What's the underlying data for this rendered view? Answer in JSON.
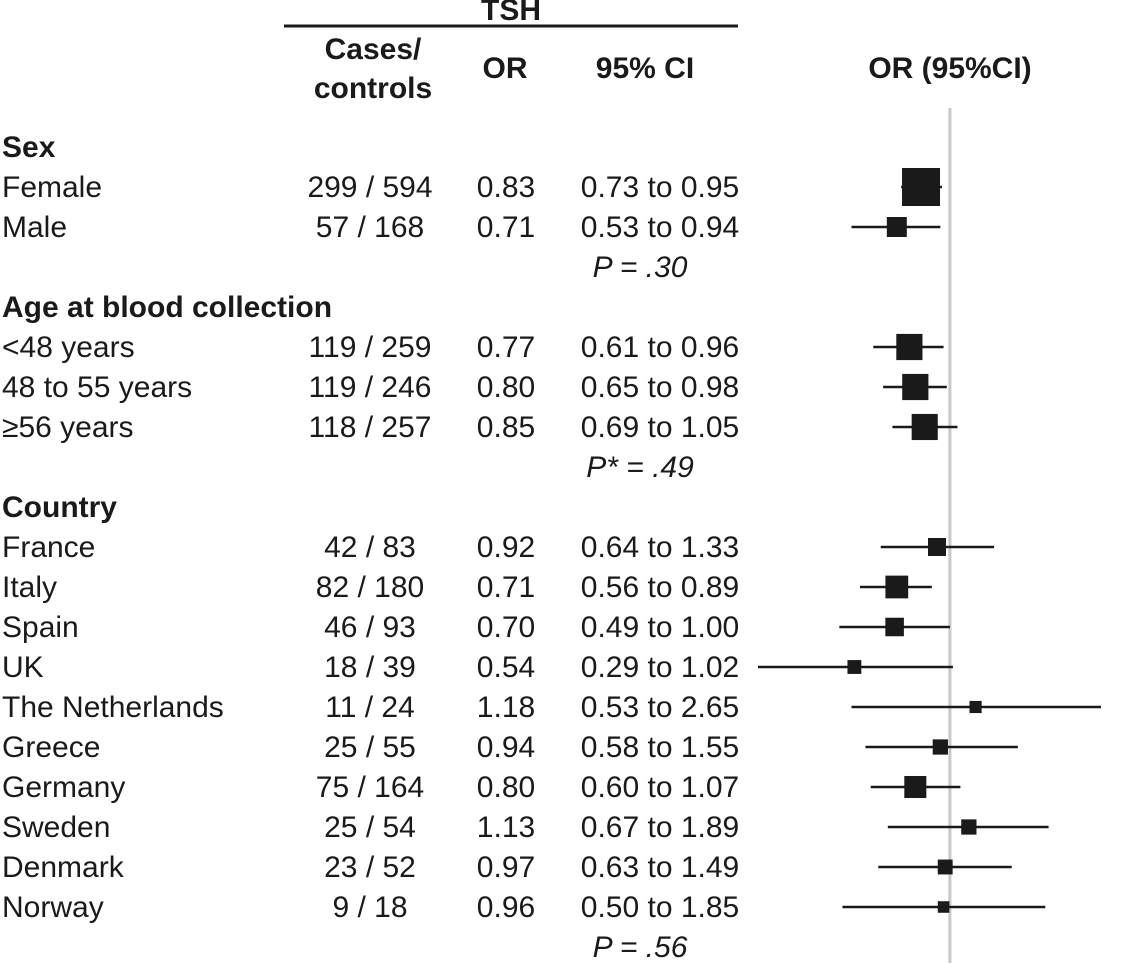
{
  "header": {
    "group": "TSH",
    "cases_line1": "Cases/",
    "cases_line2": "controls",
    "or": "OR",
    "ci": "95% CI",
    "plot": "OR (95%CI)"
  },
  "colors": {
    "marker": "#1a1a1a",
    "reference_line": "#c8c8c8"
  },
  "chart_data": {
    "type": "forest",
    "xlabel": "OR (95%CI)",
    "scale": "log",
    "xlim": [
      0.29,
      2.65
    ],
    "reference_value": 1.0,
    "column_headers": [
      "Cases/ controls",
      "OR",
      "95% CI",
      "OR (95%CI)"
    ],
    "sections": [
      {
        "title": "Sex",
        "p_label": "P = .30",
        "rows": [
          {
            "label": "Female",
            "cases": "299 / 594",
            "or": 0.83,
            "or_text": "0.83",
            "ci_low": 0.73,
            "ci_high": 0.95,
            "ci_text": "0.73 to 0.95",
            "weight": 299
          },
          {
            "label": "Male",
            "cases": "57 / 168",
            "or": 0.71,
            "or_text": "0.71",
            "ci_low": 0.53,
            "ci_high": 0.94,
            "ci_text": "0.53 to 0.94",
            "weight": 57
          }
        ]
      },
      {
        "title": "Age at blood collection",
        "p_label": "P* = .49",
        "rows": [
          {
            "label": "<48 years",
            "cases": "119 / 259",
            "or": 0.77,
            "or_text": "0.77",
            "ci_low": 0.61,
            "ci_high": 0.96,
            "ci_text": "0.61 to 0.96",
            "weight": 119
          },
          {
            "label": "48 to 55 years",
            "cases": "119 / 246",
            "or": 0.8,
            "or_text": "0.80",
            "ci_low": 0.65,
            "ci_high": 0.98,
            "ci_text": "0.65 to 0.98",
            "weight": 119
          },
          {
            "label": "≥56 years",
            "cases": "118 / 257",
            "or": 0.85,
            "or_text": "0.85",
            "ci_low": 0.69,
            "ci_high": 1.05,
            "ci_text": "0.69 to 1.05",
            "weight": 118
          }
        ]
      },
      {
        "title": "Country",
        "p_label": "P = .56",
        "rows": [
          {
            "label": "France",
            "cases": "42 / 83",
            "or": 0.92,
            "or_text": "0.92",
            "ci_low": 0.64,
            "ci_high": 1.33,
            "ci_text": "0.64 to 1.33",
            "weight": 42
          },
          {
            "label": "Italy",
            "cases": "82 / 180",
            "or": 0.71,
            "or_text": "0.71",
            "ci_low": 0.56,
            "ci_high": 0.89,
            "ci_text": "0.56 to 0.89",
            "weight": 82
          },
          {
            "label": "Spain",
            "cases": "46 / 93",
            "or": 0.7,
            "or_text": "0.70",
            "ci_low": 0.49,
            "ci_high": 1.0,
            "ci_text": "0.49 to 1.00",
            "weight": 46
          },
          {
            "label": "UK",
            "cases": "18 / 39",
            "or": 0.54,
            "or_text": "0.54",
            "ci_low": 0.29,
            "ci_high": 1.02,
            "ci_text": "0.29 to 1.02",
            "weight": 18
          },
          {
            "label": "The Netherlands",
            "cases": "11 / 24",
            "or": 1.18,
            "or_text": "1.18",
            "ci_low": 0.53,
            "ci_high": 2.65,
            "ci_text": "0.53 to 2.65",
            "weight": 11
          },
          {
            "label": "Greece",
            "cases": "25 / 55",
            "or": 0.94,
            "or_text": "0.94",
            "ci_low": 0.58,
            "ci_high": 1.55,
            "ci_text": "0.58 to 1.55",
            "weight": 25
          },
          {
            "label": "Germany",
            "cases": "75 / 164",
            "or": 0.8,
            "or_text": "0.80",
            "ci_low": 0.6,
            "ci_high": 1.07,
            "ci_text": "0.60 to 1.07",
            "weight": 75
          },
          {
            "label": "Sweden",
            "cases": "25 / 54",
            "or": 1.13,
            "or_text": "1.13",
            "ci_low": 0.67,
            "ci_high": 1.89,
            "ci_text": "0.67 to 1.89",
            "weight": 25
          },
          {
            "label": "Denmark",
            "cases": "23 / 52",
            "or": 0.97,
            "or_text": "0.97",
            "ci_low": 0.63,
            "ci_high": 1.49,
            "ci_text": "0.63 to 1.49",
            "weight": 23
          },
          {
            "label": "Norway",
            "cases": "9 / 18",
            "or": 0.96,
            "or_text": "0.96",
            "ci_low": 0.5,
            "ci_high": 1.85,
            "ci_text": "0.50 to 1.85",
            "weight": 9
          }
        ]
      }
    ]
  }
}
